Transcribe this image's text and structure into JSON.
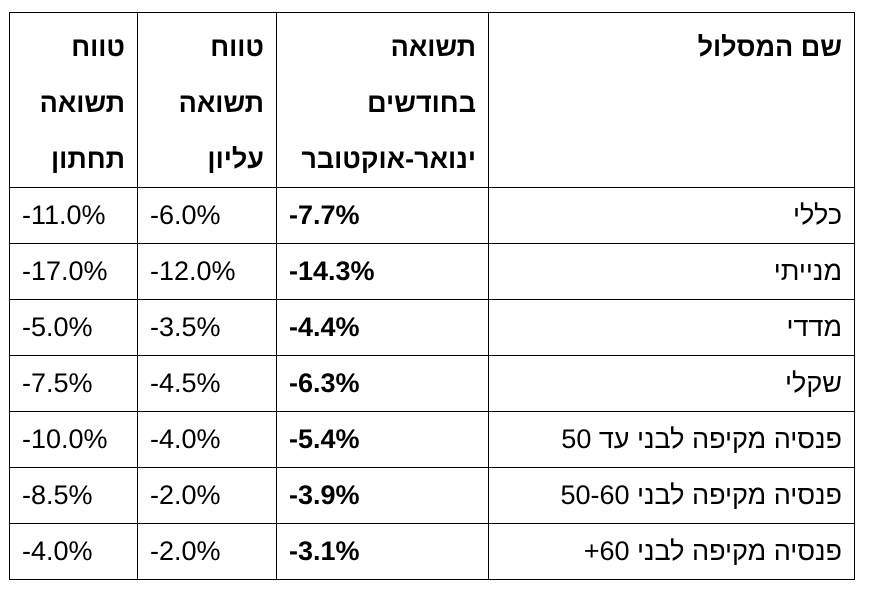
{
  "headers": {
    "name": [
      "שם המסלול"
    ],
    "return": [
      "תשואה",
      "בחודשים",
      "ינואר-אוקטובר"
    ],
    "upper": [
      "טווח",
      "תשואה",
      "עליון"
    ],
    "lower": [
      "טווח",
      "תשואה",
      "תחתון"
    ]
  },
  "rows": [
    {
      "name": "כללי",
      "return": "-7.7%",
      "upper": "-6.0%",
      "lower": "-11.0%"
    },
    {
      "name": "מנייתי",
      "return": "-14.3%",
      "upper": "-12.0%",
      "lower": "-17.0%"
    },
    {
      "name": "מדדי",
      "return": "-4.4%",
      "upper": "-3.5%",
      "lower": "-5.0%"
    },
    {
      "name": "שקלי",
      "return": "-6.3%",
      "upper": "-4.5%",
      "lower": "-7.5%"
    },
    {
      "name": "פנסיה מקיפה לבני עד 50",
      "return": "-5.4%",
      "upper": "-4.0%",
      "lower": "-10.0%"
    },
    {
      "name": "פנסיה מקיפה לבני 50-60",
      "return": "-3.9%",
      "upper": "-2.0%",
      "lower": "-8.5%"
    },
    {
      "name": "פנסיה מקיפה לבני 60+",
      "return": "-3.1%",
      "upper": "-2.0%",
      "lower": "-4.0%"
    }
  ]
}
